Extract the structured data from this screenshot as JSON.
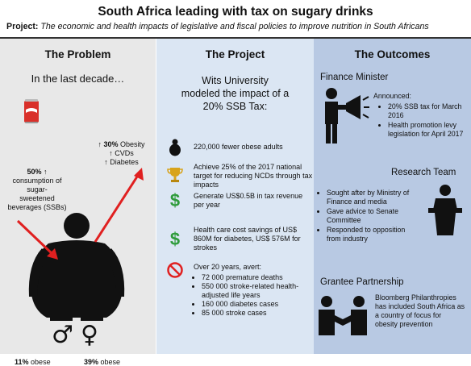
{
  "header": {
    "title": "South Africa leading with tax on sugary drinks",
    "project_label": "Project:",
    "project_text": "The economic and health impacts of legislative and fiscal policies to improve nutrition in South Africans"
  },
  "problem": {
    "heading": "The Problem",
    "intro": "In the last decade…",
    "consumption_stat": "50% ↑",
    "consumption_lines": [
      "consumption of",
      "sugar-",
      "sweetened",
      "beverages (SSBs)"
    ],
    "health_stat": "↑ 30%",
    "health_items": [
      "Obesity",
      "↑ CVDs",
      "↑ Diabetes"
    ],
    "male_obese_pct": "11%",
    "female_obese_pct": "39%",
    "obese_label": "obese",
    "male_symbol": "♂",
    "female_symbol": "♀"
  },
  "project": {
    "heading": "The Project",
    "intro_lines": [
      "Wits University",
      "modeled the impact of a",
      "20% SSB Tax:"
    ],
    "items": [
      {
        "icon": "person-icon",
        "text": "220,000 fewer obese adults"
      },
      {
        "icon": "trophy-icon",
        "text": "Achieve 25% of the 2017 national target for reducing NCDs through tax impacts"
      },
      {
        "icon": "dollar-icon",
        "text": "Generate US$0.5B in tax revenue per year"
      },
      {
        "icon": "dollar-icon",
        "text": "Health care cost savings of US$ 860M for diabetes, US$ 576M for strokes"
      },
      {
        "icon": "prohibited-icon",
        "text": "Over 20 years, avert:",
        "bullets": [
          "72 000 premature deaths",
          "550 000 stroke-related health-adjusted life years",
          "160 000 diabetes cases",
          "85 000 stroke cases"
        ]
      }
    ]
  },
  "outcomes": {
    "heading": "The Outcomes",
    "finance": {
      "heading": "Finance Minister",
      "announced": "Announced:",
      "bullets": [
        "20% SSB tax for March 2016",
        "Health promotion levy legislation for April 2017"
      ]
    },
    "research": {
      "heading": "Research Team",
      "bullets": [
        "Sought after by Ministry of Finance and media",
        "Gave advice to Senate Committee",
        "Responded to opposition from industry"
      ]
    },
    "grantee": {
      "heading": "Grantee Partnership",
      "text": "Bloomberg Philanthropies has included South Africa as a country of focus for obesity prevention"
    }
  },
  "colors": {
    "problem_bg": "#e8e8e8",
    "project_bg": "#dbe6f3",
    "outcomes_bg": "#b8c9e3",
    "arrow_red": "#e02020",
    "icon_green": "#2e9b3a",
    "icon_gold": "#d8a31a",
    "can_red": "#d9302a"
  }
}
